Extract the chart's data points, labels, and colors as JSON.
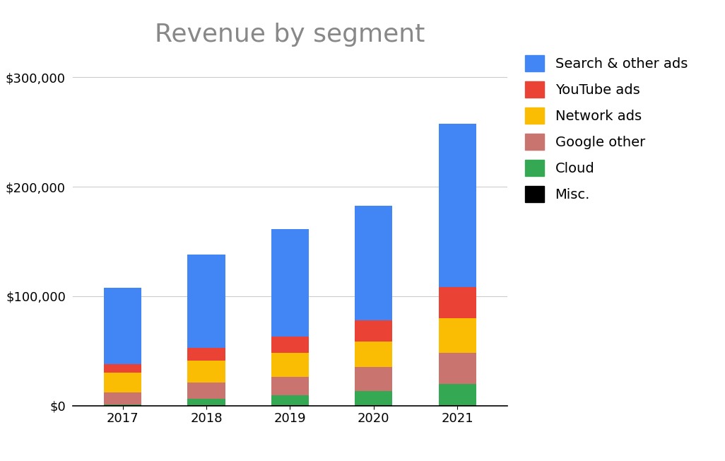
{
  "years": [
    "2017",
    "2018",
    "2019",
    "2020",
    "2021"
  ],
  "segments": {
    "Misc.": [
      338,
      595,
      659,
      657,
      773
    ],
    "Cloud": [
      1110,
      5838,
      8918,
      13059,
      19206
    ],
    "Google other": [
      10914,
      14911,
      17014,
      21711,
      28032
    ],
    "Network ads": [
      17587,
      19985,
      21547,
      23054,
      31701
    ],
    "YouTube ads": [
      8149,
      11155,
      15149,
      19772,
      28845
    ],
    "Search & other ads": [
      69811,
      85296,
      98115,
      104062,
      148951
    ]
  },
  "colors": {
    "Misc.": "#000000",
    "Cloud": "#34a853",
    "Google other": "#c9746e",
    "Network ads": "#fbbc04",
    "YouTube ads": "#ea4335",
    "Search & other ads": "#4285f4"
  },
  "title": "Revenue by segment",
  "ylim": [
    0,
    320000
  ],
  "yticks": [
    0,
    100000,
    200000,
    300000
  ],
  "ytick_labels": [
    "$0",
    "$100,000",
    "$200,000",
    "$300,000"
  ],
  "background_color": "#ffffff",
  "title_fontsize": 26,
  "legend_fontsize": 14,
  "tick_fontsize": 13,
  "ylabel_fontsize": 13
}
